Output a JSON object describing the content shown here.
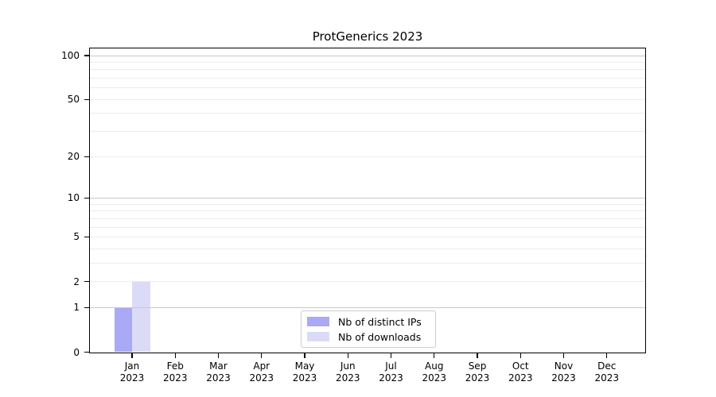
{
  "title": "ProtGenerics 2023",
  "chart_data": {
    "type": "bar",
    "title": "ProtGenerics 2023",
    "categories": [
      "Jan 2023",
      "Feb 2023",
      "Mar 2023",
      "Apr 2023",
      "May 2023",
      "Jun 2023",
      "Jul 2023",
      "Aug 2023",
      "Sep 2023",
      "Oct 2023",
      "Nov 2023",
      "Dec 2023"
    ],
    "series": [
      {
        "name": "Nb of distinct IPs",
        "color": "#a9a9f6",
        "values": [
          1,
          0,
          0,
          0,
          0,
          0,
          0,
          0,
          0,
          0,
          0,
          0
        ]
      },
      {
        "name": "Nb of downloads",
        "color": "#dbdbf8",
        "values": [
          2,
          0,
          0,
          0,
          0,
          0,
          0,
          0,
          0,
          0,
          0,
          0
        ]
      }
    ],
    "xlabel": "",
    "ylabel": "",
    "yscale": "log1p",
    "ylim": [
      0,
      100
    ],
    "y_tick_values": [
      0,
      1,
      2,
      5,
      10,
      20,
      50,
      100
    ],
    "y_major_grid_values": [
      1,
      10,
      100
    ],
    "y_minor_grid_values": [
      2,
      3,
      4,
      5,
      6,
      7,
      8,
      9,
      20,
      30,
      40,
      50,
      60,
      70,
      80,
      90
    ],
    "grid": true,
    "legend_position": "bottom-center"
  },
  "colors": {
    "background": "#ffffff",
    "axis": "#000000",
    "major_grid": "#c8c8c8",
    "minor_grid": "#ececec",
    "legend_border": "#cccccc",
    "text": "#000000"
  }
}
